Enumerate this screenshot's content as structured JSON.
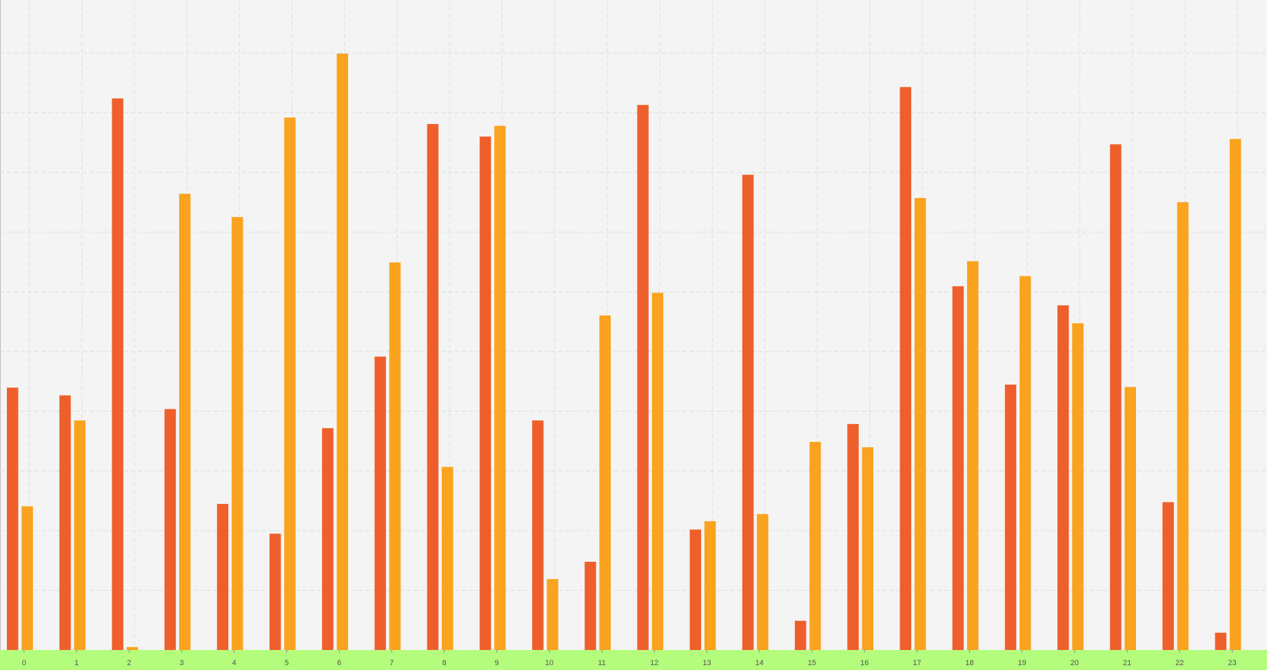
{
  "chart_data": {
    "type": "bar",
    "categories": [
      "0",
      "1",
      "2",
      "3",
      "4",
      "5",
      "6",
      "7",
      "8",
      "9",
      "10",
      "11",
      "12",
      "13",
      "14",
      "15",
      "16",
      "17",
      "18",
      "19",
      "20",
      "21",
      "22",
      "23"
    ],
    "series": [
      {
        "color": "#EF5F2C",
        "values": [
          44,
          42.7,
          92.5,
          40.4,
          24.5,
          19.5,
          37.2,
          49.2,
          88.2,
          86.1,
          38.5,
          14.8,
          91.4,
          20.2,
          79.7,
          4.9,
          37.9,
          94.4,
          61,
          44.5,
          57.8,
          84.8,
          24.8,
          2.9
        ]
      },
      {
        "color": "#F9A31E",
        "values": [
          24.1,
          38.5,
          0.5,
          76.5,
          72.6,
          89.3,
          100,
          65,
          30.7,
          87.9,
          11.9,
          56.1,
          59.9,
          21.6,
          22.8,
          34.9,
          34,
          75.8,
          65.2,
          62.7,
          54.8,
          44.1,
          75.1,
          85.7
        ]
      }
    ],
    "ylim": [
      0,
      109
    ],
    "grid": true,
    "colors": {
      "plot_background": "#F4F4F4",
      "axis_band": "#B4FC7C",
      "grid": "#DCDCDC",
      "tick_label": "#555555"
    }
  }
}
